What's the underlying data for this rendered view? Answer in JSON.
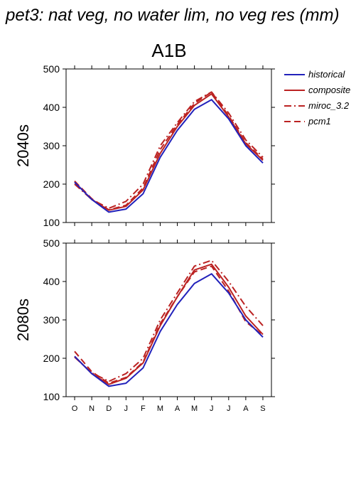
{
  "header": {
    "title": "pet3: nat veg, no water lim, no veg res (mm)",
    "scenario": "A1B"
  },
  "legend": {
    "placement": "right",
    "items": [
      {
        "label": "historical",
        "color": "#2222bb",
        "style": "solid"
      },
      {
        "label": "composite",
        "color": "#bb2222",
        "style": "solid"
      },
      {
        "label": "miroc_3.2",
        "color": "#bb2222",
        "style": "dashdot"
      },
      {
        "label": "pcm1",
        "color": "#bb2222",
        "style": "dashed"
      }
    ]
  },
  "chart_data": [
    {
      "type": "line",
      "panel_label": "2040s",
      "x": [
        "O",
        "N",
        "D",
        "J",
        "F",
        "M",
        "A",
        "M",
        "J",
        "J",
        "A",
        "S"
      ],
      "ylim": [
        100,
        500
      ],
      "yticks": [
        100,
        200,
        300,
        400,
        500
      ],
      "grid": false,
      "series": [
        {
          "name": "historical",
          "values": [
            205,
            160,
            127,
            135,
            175,
            270,
            340,
            395,
            420,
            370,
            300,
            255
          ]
        },
        {
          "name": "composite",
          "values": [
            205,
            160,
            132,
            142,
            185,
            280,
            350,
            405,
            435,
            375,
            305,
            262
          ]
        },
        {
          "name": "miroc_3.2",
          "values": [
            200,
            160,
            137,
            155,
            200,
            300,
            360,
            415,
            440,
            385,
            315,
            270
          ]
        },
        {
          "name": "pcm1",
          "values": [
            208,
            162,
            133,
            145,
            190,
            290,
            355,
            410,
            440,
            378,
            308,
            265
          ]
        }
      ]
    },
    {
      "type": "line",
      "panel_label": "2080s",
      "x": [
        "O",
        "N",
        "D",
        "J",
        "F",
        "M",
        "A",
        "M",
        "J",
        "J",
        "A",
        "S"
      ],
      "ylim": [
        100,
        500
      ],
      "yticks": [
        100,
        200,
        300,
        400,
        500
      ],
      "grid": false,
      "series": [
        {
          "name": "historical",
          "values": [
            205,
            160,
            127,
            135,
            175,
            270,
            340,
            395,
            420,
            370,
            300,
            255
          ]
        },
        {
          "name": "composite",
          "values": [
            205,
            160,
            132,
            148,
            188,
            285,
            360,
            430,
            445,
            385,
            310,
            262
          ]
        },
        {
          "name": "miroc_3.2",
          "values": [
            203,
            162,
            140,
            160,
            200,
            300,
            370,
            440,
            455,
            400,
            335,
            285
          ]
        },
        {
          "name": "pcm1",
          "values": [
            218,
            165,
            135,
            150,
            190,
            290,
            360,
            425,
            440,
            375,
            295,
            260
          ]
        }
      ]
    }
  ]
}
